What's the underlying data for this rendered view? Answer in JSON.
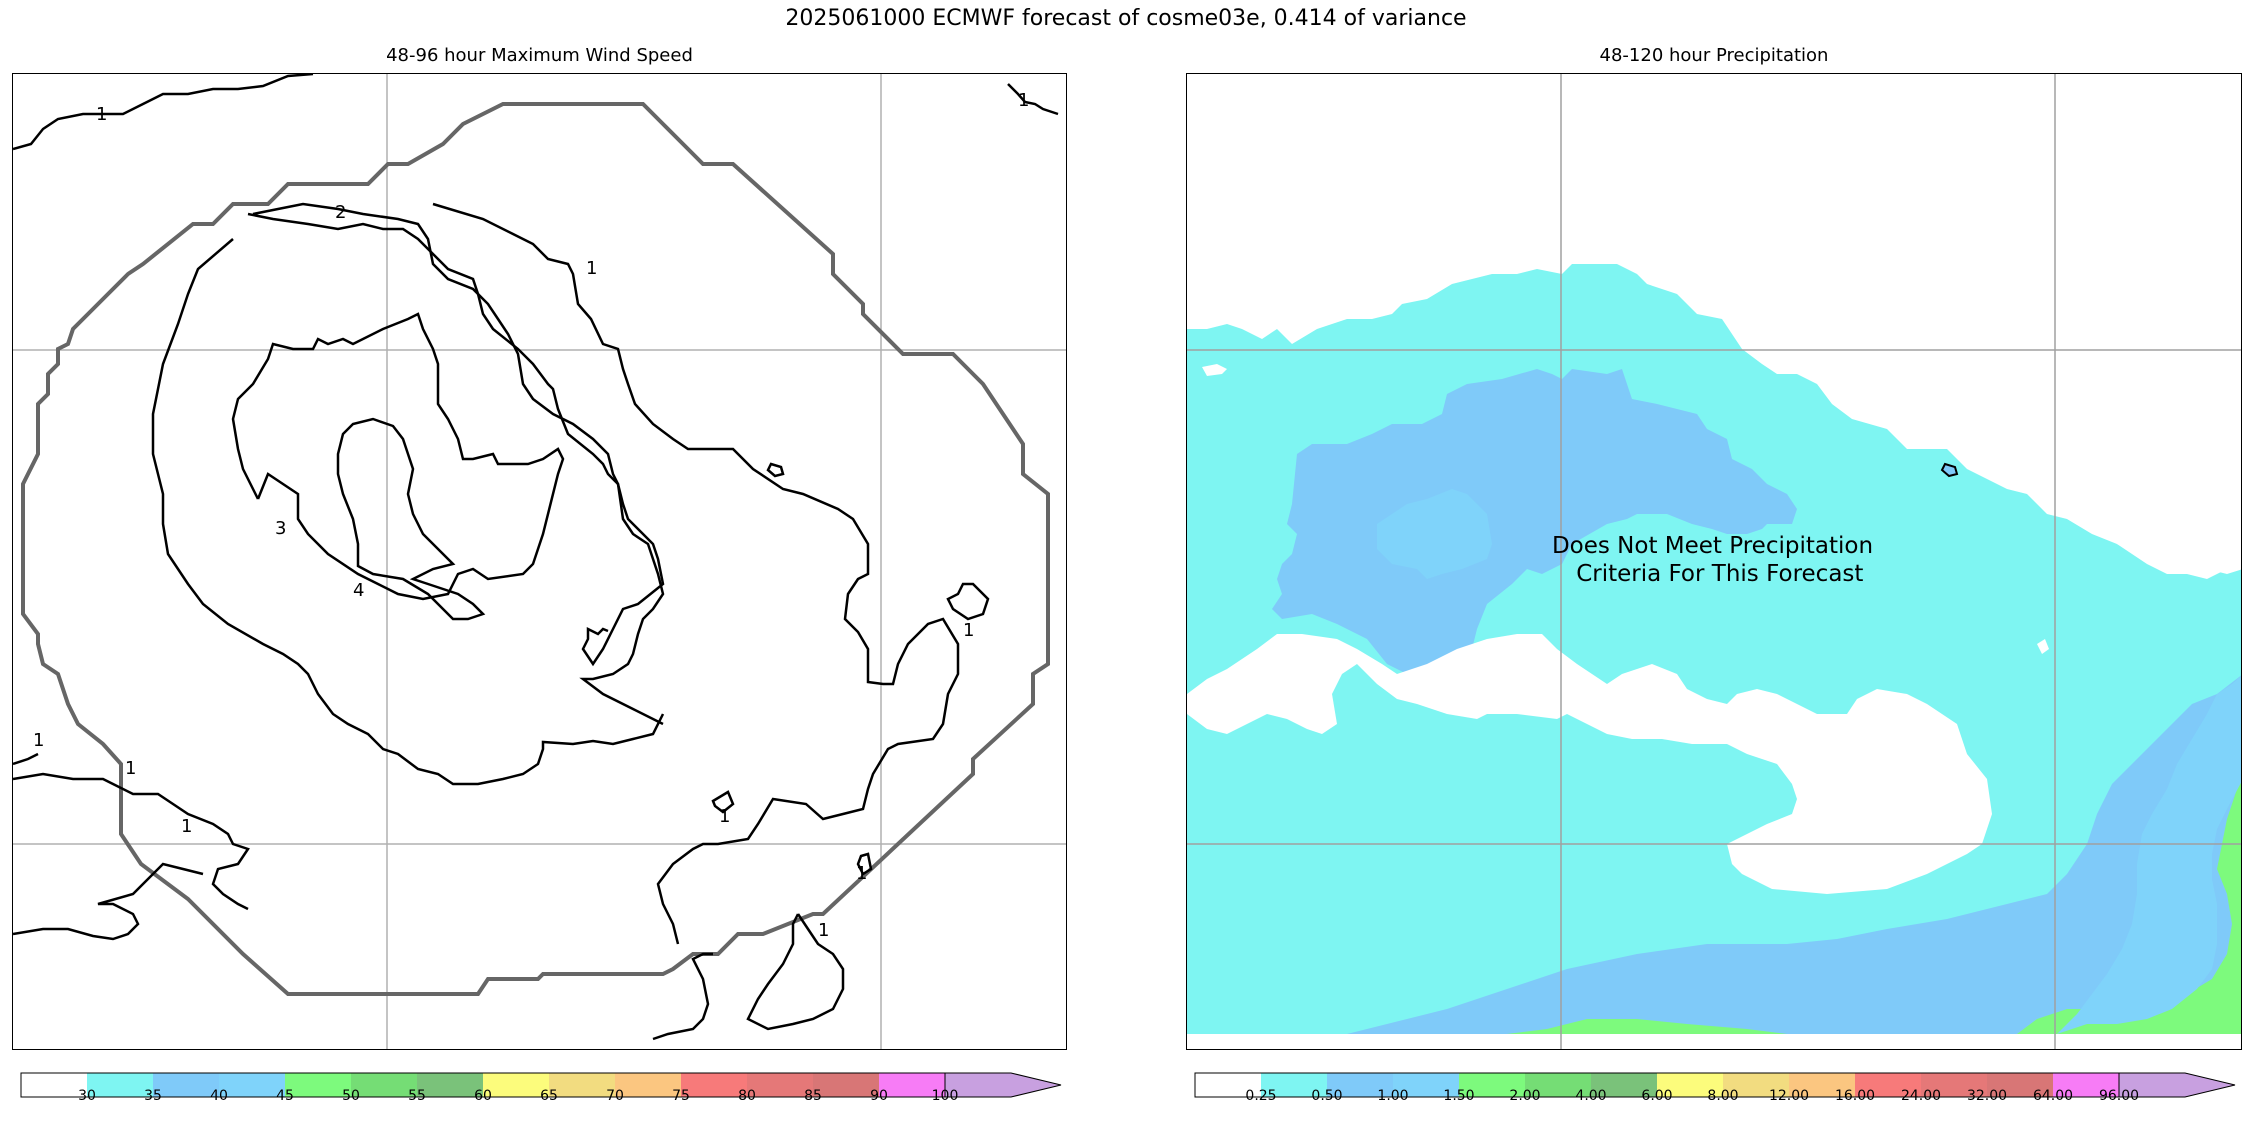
{
  "figure": {
    "suptitle": "2025061000 ECMWF forecast of cosme03e, 0.414 of variance"
  },
  "chart_data": [
    {
      "type": "contour",
      "title": "48-96 hour Maximum Wind Speed",
      "contour_levels_labeled": [
        1,
        2,
        3,
        4
      ],
      "colorbar": {
        "ticks": [
          "30",
          "35",
          "40",
          "45",
          "50",
          "55",
          "60",
          "65",
          "70",
          "75",
          "80",
          "85",
          "90",
          "100"
        ],
        "colors": [
          "#ffffff",
          "#7ef5f2",
          "#7fcaf9",
          "#7fd3fa",
          "#7dfa7d",
          "#75dd75",
          "#7ac27a",
          "#fcfc7c",
          "#f2dc80",
          "#fbc680",
          "#f77a7a",
          "#e57878",
          "#d87676",
          "#f77cf6",
          "#c8a0e0"
        ]
      }
    },
    {
      "type": "filled-contour",
      "title": "48-120 hour Precipitation",
      "annotation": "Does Not Meet Precipitation\n  Criteria For This Forecast",
      "colorbar": {
        "ticks": [
          "0.25",
          "0.50",
          "1.00",
          "1.50",
          "2.00",
          "4.00",
          "6.00",
          "8.00",
          "12.00",
          "16.00",
          "24.00",
          "32.00",
          "64.00",
          "96.00"
        ],
        "colors": [
          "#ffffff",
          "#7ef5f2",
          "#7fcaf9",
          "#7fd3fa",
          "#7dfa7d",
          "#75dd75",
          "#7ac27a",
          "#fcfc7c",
          "#f2dc80",
          "#fbc680",
          "#f77a7a",
          "#e57878",
          "#d87676",
          "#f77cf6",
          "#c8a0e0"
        ]
      }
    }
  ]
}
